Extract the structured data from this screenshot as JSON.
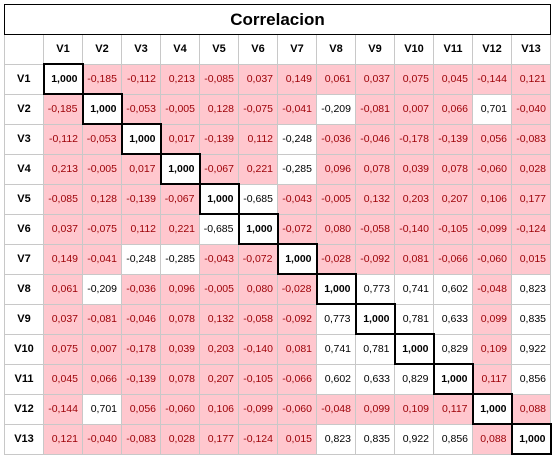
{
  "title": "Correlacion",
  "variables": [
    "V1",
    "V2",
    "V3",
    "V4",
    "V5",
    "V6",
    "V7",
    "V8",
    "V9",
    "V10",
    "V11",
    "V12",
    "V13"
  ],
  "colors": {
    "highlight_fill": "#ffc7ce",
    "highlight_text": "#9c0006",
    "normal_fill": "#ffffff"
  },
  "matrix": [
    [
      "1,000",
      "-0,185",
      "-0,112",
      "0,213",
      "-0,085",
      "0,037",
      "0,149",
      "0,061",
      "0,037",
      "0,075",
      "0,045",
      "-0,144",
      "0,121"
    ],
    [
      "-0,185",
      "1,000",
      "-0,053",
      "-0,005",
      "0,128",
      "-0,075",
      "-0,041",
      "-0,209",
      "-0,081",
      "0,007",
      "0,066",
      "0,701",
      "-0,040"
    ],
    [
      "-0,112",
      "-0,053",
      "1,000",
      "0,017",
      "-0,139",
      "0,112",
      "-0,248",
      "-0,036",
      "-0,046",
      "-0,178",
      "-0,139",
      "0,056",
      "-0,083"
    ],
    [
      "0,213",
      "-0,005",
      "0,017",
      "1,000",
      "-0,067",
      "0,221",
      "-0,285",
      "0,096",
      "0,078",
      "0,039",
      "0,078",
      "-0,060",
      "0,028"
    ],
    [
      "-0,085",
      "0,128",
      "-0,139",
      "-0,067",
      "1,000",
      "-0,685",
      "-0,043",
      "-0,005",
      "0,132",
      "0,203",
      "0,207",
      "0,106",
      "0,177"
    ],
    [
      "0,037",
      "-0,075",
      "0,112",
      "0,221",
      "-0,685",
      "1,000",
      "-0,072",
      "0,080",
      "-0,058",
      "-0,140",
      "-0,105",
      "-0,099",
      "-0,124"
    ],
    [
      "0,149",
      "-0,041",
      "-0,248",
      "-0,285",
      "-0,043",
      "-0,072",
      "1,000",
      "-0,028",
      "-0,092",
      "0,081",
      "-0,066",
      "-0,060",
      "0,015"
    ],
    [
      "0,061",
      "-0,209",
      "-0,036",
      "0,096",
      "-0,005",
      "0,080",
      "-0,028",
      "1,000",
      "0,773",
      "0,741",
      "0,602",
      "-0,048",
      "0,823"
    ],
    [
      "0,037",
      "-0,081",
      "-0,046",
      "0,078",
      "0,132",
      "-0,058",
      "-0,092",
      "0,773",
      "1,000",
      "0,781",
      "0,633",
      "0,099",
      "0,835"
    ],
    [
      "0,075",
      "0,007",
      "-0,178",
      "0,039",
      "0,203",
      "-0,140",
      "0,081",
      "0,741",
      "0,781",
      "1,000",
      "0,829",
      "0,109",
      "0,922"
    ],
    [
      "0,045",
      "0,066",
      "-0,139",
      "0,078",
      "0,207",
      "-0,105",
      "-0,066",
      "0,602",
      "0,633",
      "0,829",
      "1,000",
      "0,117",
      "0,856"
    ],
    [
      "-0,144",
      "0,701",
      "0,056",
      "-0,060",
      "0,106",
      "-0,099",
      "-0,060",
      "-0,048",
      "0,099",
      "0,109",
      "0,117",
      "1,000",
      "0,088"
    ],
    [
      "0,121",
      "-0,040",
      "-0,083",
      "0,028",
      "0,177",
      "-0,124",
      "0,015",
      "0,823",
      "0,835",
      "0,922",
      "0,856",
      "0,088",
      "1,000"
    ]
  ],
  "white_cells": [
    [
      1,
      7
    ],
    [
      1,
      11
    ],
    [
      2,
      6
    ],
    [
      3,
      6
    ],
    [
      4,
      5
    ],
    [
      5,
      4
    ],
    [
      6,
      2
    ],
    [
      6,
      3
    ],
    [
      7,
      1
    ],
    [
      7,
      8
    ],
    [
      7,
      9
    ],
    [
      7,
      10
    ],
    [
      7,
      12
    ],
    [
      8,
      7
    ],
    [
      8,
      9
    ],
    [
      8,
      10
    ],
    [
      8,
      12
    ],
    [
      9,
      7
    ],
    [
      9,
      8
    ],
    [
      9,
      10
    ],
    [
      9,
      12
    ],
    [
      10,
      7
    ],
    [
      10,
      8
    ],
    [
      10,
      9
    ],
    [
      10,
      12
    ],
    [
      11,
      1
    ],
    [
      12,
      7
    ],
    [
      12,
      8
    ],
    [
      12,
      9
    ],
    [
      12,
      10
    ]
  ]
}
